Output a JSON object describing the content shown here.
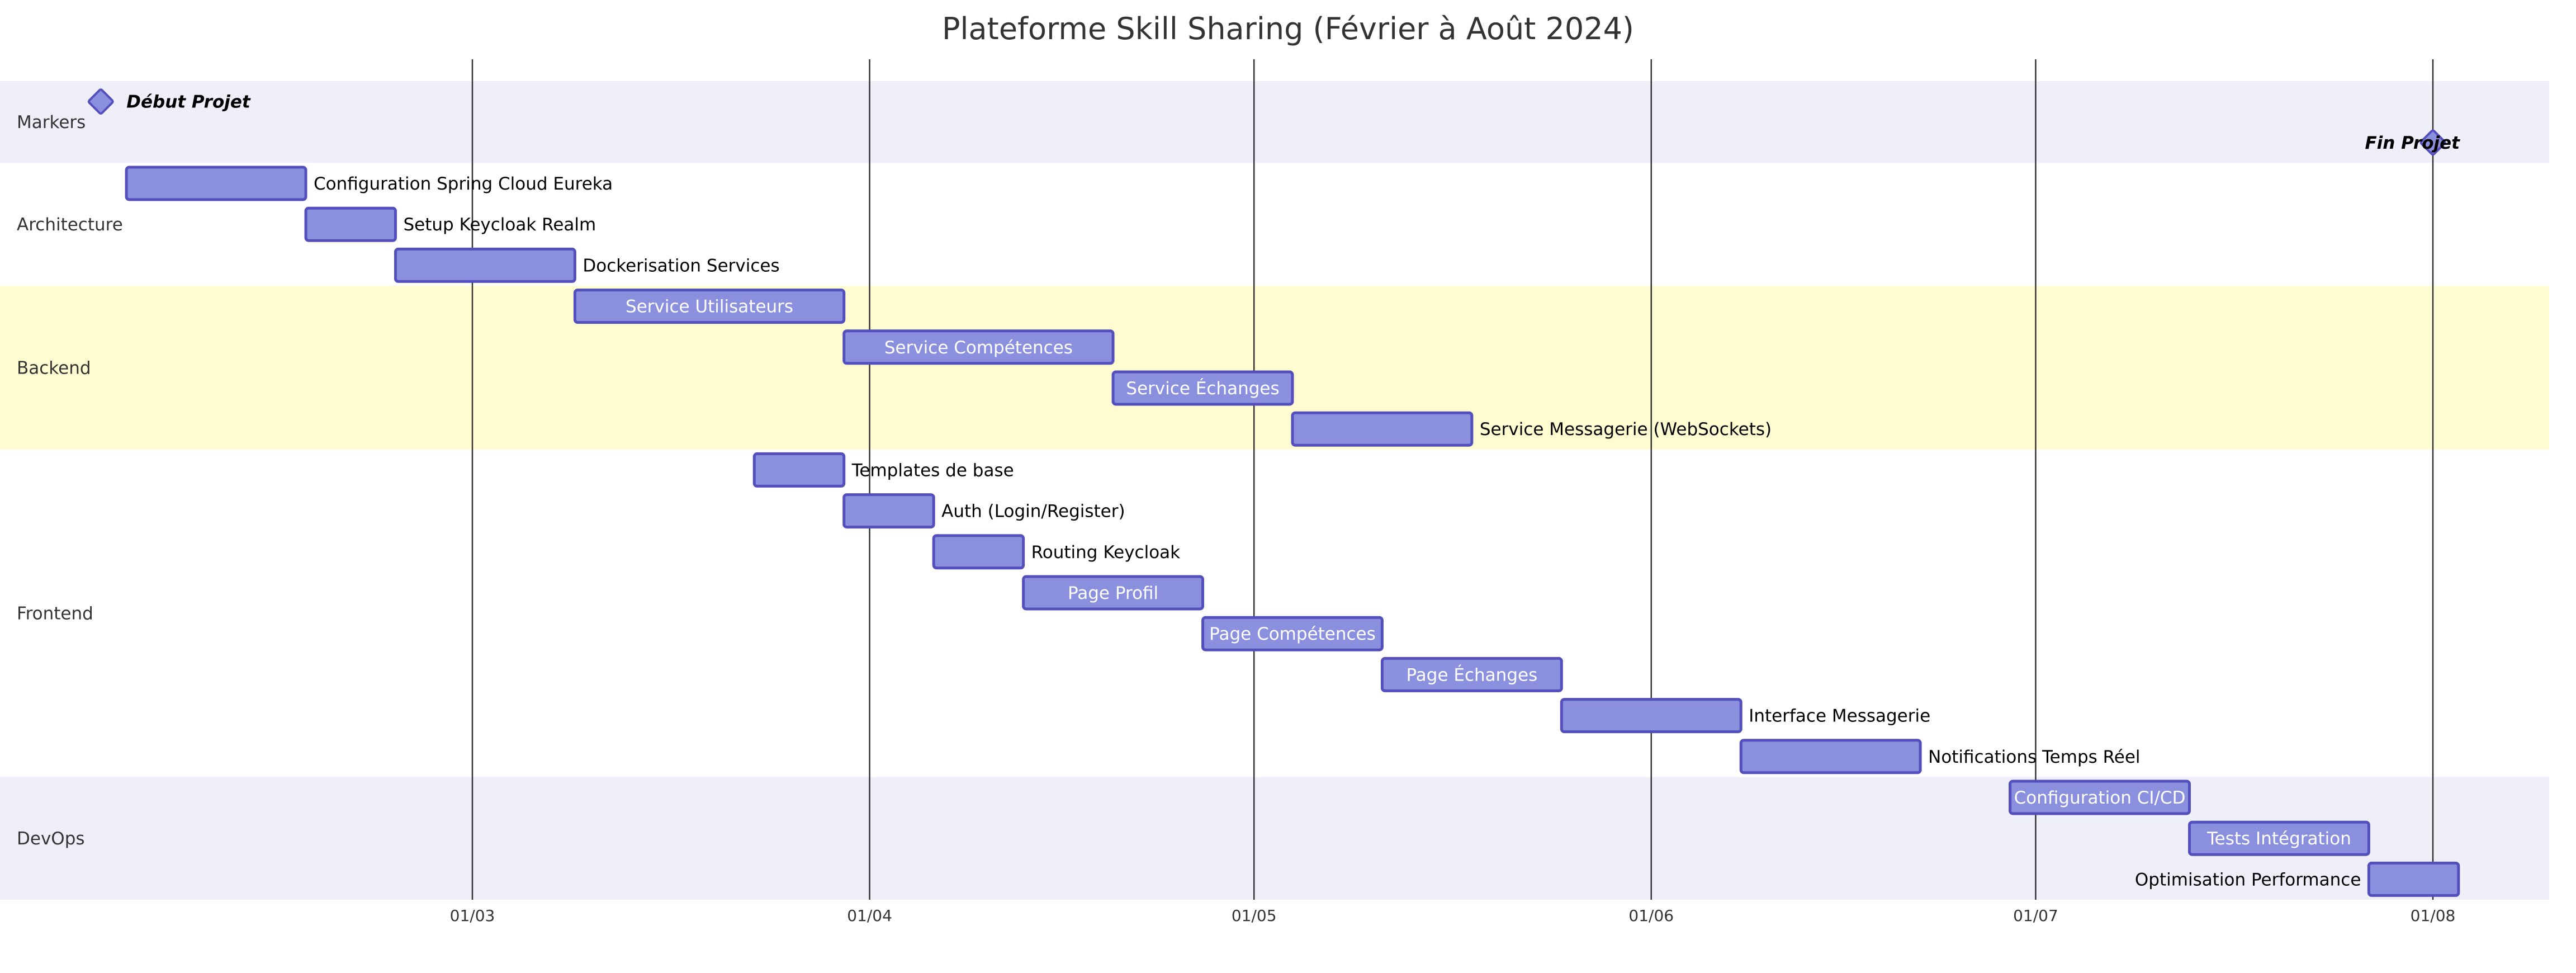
{
  "chart_data": {
    "type": "gantt",
    "title": "Plateforme Skill Sharing (Février à Août 2024)",
    "x_range": [
      "2024-01-21",
      "2024-08-15"
    ],
    "ticks": [
      {
        "date": "2024-03-01",
        "label": "01/03"
      },
      {
        "date": "2024-04-01",
        "label": "01/04"
      },
      {
        "date": "2024-05-01",
        "label": "01/05"
      },
      {
        "date": "2024-06-01",
        "label": "01/06"
      },
      {
        "date": "2024-07-01",
        "label": "01/07"
      },
      {
        "date": "2024-08-01",
        "label": "01/08"
      }
    ],
    "colors": {
      "bar_fill": "#8a90dd",
      "bar_stroke": "#534fbc",
      "section_alt": "#efeffa",
      "section_highlight": "#fffcd1",
      "section_plain": "#ffffff",
      "grid": "#333333"
    },
    "sections": [
      {
        "name": "Markers",
        "band": "alt",
        "rows": 2,
        "tasks": [
          {
            "label": "Début Projet",
            "milestone": true,
            "date": "2024-02-01",
            "row": 0
          },
          {
            "label": "Fin Projet",
            "milestone": true,
            "date": "2024-08-01",
            "row": 1
          }
        ]
      },
      {
        "name": "Architecture",
        "band": "plain",
        "rows": 3,
        "tasks": [
          {
            "label": "Configuration Spring Cloud Eureka",
            "start": "2024-02-03",
            "end": "2024-02-17",
            "row": 0
          },
          {
            "label": "Setup Keycloak Realm",
            "start": "2024-02-17",
            "end": "2024-02-24",
            "row": 1
          },
          {
            "label": "Dockerisation Services",
            "start": "2024-02-24",
            "end": "2024-03-09",
            "row": 2
          }
        ]
      },
      {
        "name": "Backend",
        "band": "highlight",
        "rows": 4,
        "tasks": [
          {
            "label": "Service Utilisateurs",
            "start": "2024-03-09",
            "end": "2024-03-30",
            "row": 0
          },
          {
            "label": "Service Compétences",
            "start": "2024-03-30",
            "end": "2024-04-20",
            "row": 1
          },
          {
            "label": "Service Échanges",
            "start": "2024-04-20",
            "end": "2024-05-04",
            "row": 2
          },
          {
            "label": "Service Messagerie (WebSockets)",
            "start": "2024-05-04",
            "end": "2024-05-18",
            "row": 3
          }
        ]
      },
      {
        "name": "Frontend",
        "band": "plain",
        "rows": 8,
        "tasks": [
          {
            "label": "Templates de base",
            "start": "2024-03-23",
            "end": "2024-03-30",
            "row": 0
          },
          {
            "label": "Auth (Login/Register)",
            "start": "2024-03-30",
            "end": "2024-04-06",
            "row": 1
          },
          {
            "label": "Routing Keycloak",
            "start": "2024-04-06",
            "end": "2024-04-13",
            "row": 2
          },
          {
            "label": "Page Profil",
            "start": "2024-04-13",
            "end": "2024-04-27",
            "row": 3
          },
          {
            "label": "Page Compétences",
            "start": "2024-04-27",
            "end": "2024-05-11",
            "row": 4
          },
          {
            "label": "Page Échanges",
            "start": "2024-05-11",
            "end": "2024-05-25",
            "row": 5
          },
          {
            "label": "Interface Messagerie",
            "start": "2024-05-25",
            "end": "2024-06-08",
            "row": 6
          },
          {
            "label": "Notifications Temps Réel",
            "start": "2024-06-08",
            "end": "2024-06-22",
            "row": 7
          }
        ]
      },
      {
        "name": "DevOps",
        "band": "alt",
        "rows": 3,
        "tasks": [
          {
            "label": "Configuration CI/CD",
            "start": "2024-06-29",
            "end": "2024-07-13",
            "row": 0
          },
          {
            "label": "Tests Intégration",
            "start": "2024-07-13",
            "end": "2024-07-27",
            "row": 1
          },
          {
            "label": "Optimisation Performance",
            "start": "2024-07-27",
            "end": "2024-08-03",
            "row": 2
          }
        ]
      }
    ]
  }
}
